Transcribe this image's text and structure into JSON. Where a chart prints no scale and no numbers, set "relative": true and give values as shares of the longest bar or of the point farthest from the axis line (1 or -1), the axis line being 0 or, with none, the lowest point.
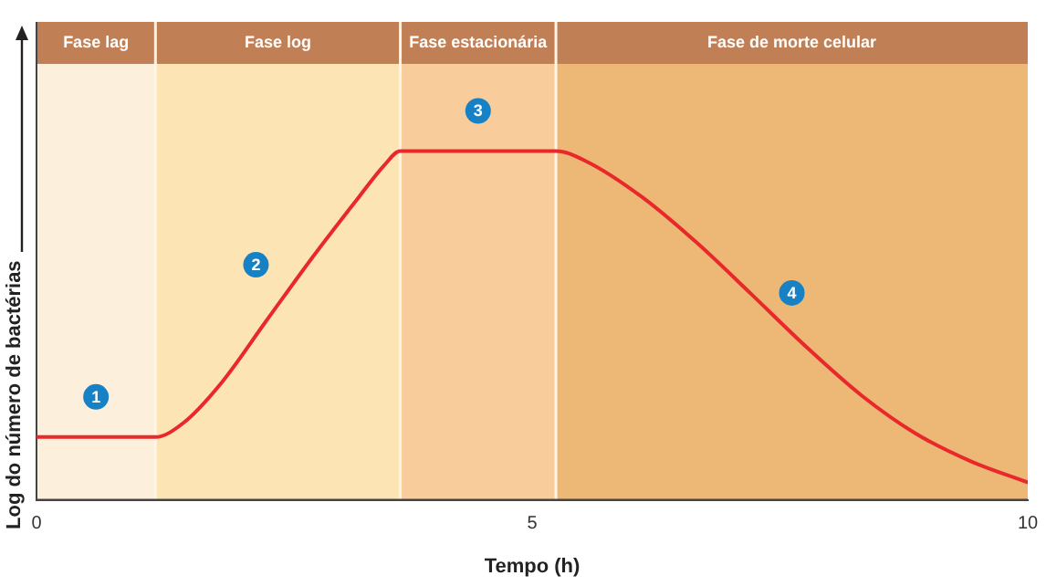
{
  "chart_data": {
    "type": "line",
    "xlabel": "Tempo (h)",
    "ylabel": "Log do número de bactérias",
    "relative": true,
    "xlim": [
      0,
      10
    ],
    "xticks": [
      0,
      5,
      10
    ],
    "grid": false,
    "legend": false,
    "marker": "none",
    "line_style": "solid",
    "bands": [
      {
        "axis": "x",
        "from": 0,
        "to": 1.2,
        "label": "Fase lag",
        "color": "#fcf0dc"
      },
      {
        "axis": "x",
        "from": 1.2,
        "to": 3.67,
        "label": "Fase log",
        "color": "#fce4b5"
      },
      {
        "axis": "x",
        "from": 3.67,
        "to": 5.24,
        "label": "Fase estacionária",
        "color": "#f8cd9b"
      },
      {
        "axis": "x",
        "from": 5.24,
        "to": 10,
        "label": "Fase de morte celular",
        "color": "#edb775"
      }
    ],
    "series": [
      {
        "color": "#e8282b",
        "x": [
          0,
          1.2,
          1.48,
          1.85,
          2.31,
          2.77,
          3.23,
          3.51,
          3.67,
          5.24,
          5.55,
          6.1,
          6.65,
          7.21,
          7.76,
          8.32,
          8.87,
          9.43,
          10
        ],
        "values": [
          0.18,
          0.18,
          0.22,
          0.33,
          0.51,
          0.69,
          0.86,
          0.96,
          1,
          1,
          0.97,
          0.87,
          0.74,
          0.59,
          0.44,
          0.3,
          0.19,
          0.11,
          0.05
        ]
      }
    ],
    "annotations": [
      "1",
      "2",
      "3",
      "4"
    ]
  }
}
